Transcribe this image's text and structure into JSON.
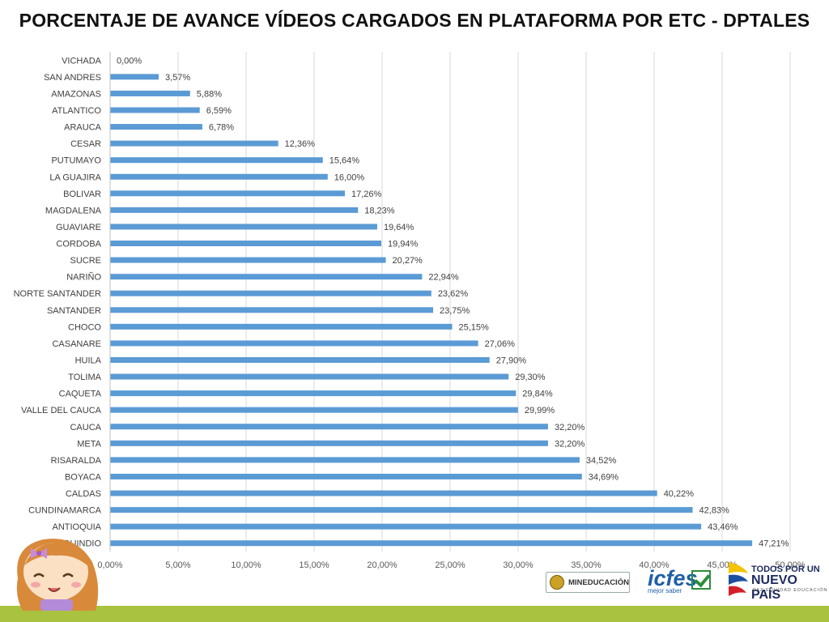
{
  "title": "PORCENTAJE DE AVANCE VÍDEOS CARGADOS EN PLATAFORMA POR ETC - DPTALES",
  "logos": {
    "mineducacion_text": "MINEDUCACIÓN",
    "icfes_text": "icfes",
    "icfes_sub": "mejor saber",
    "tpun_line1": "TODOS POR UN",
    "tpun_line2": "NUEVO PAÍS",
    "tpun_line3": "PAZ  EQUIDAD  EDUCACIÓN"
  },
  "colors": {
    "bar": "#5b9bd5",
    "grid": "#d9d9d9",
    "bottom_band": "#a9c23f"
  },
  "chart_data": {
    "type": "bar",
    "orientation": "horizontal",
    "title": "PORCENTAJE DE AVANCE VÍDEOS CARGADOS EN PLATAFORMA POR ETC - DPTALES",
    "xlim": [
      0,
      50
    ],
    "grid": true,
    "x_ticks": [
      "0,00%",
      "5,00%",
      "10,00%",
      "15,00%",
      "20,00%",
      "25,00%",
      "30,00%",
      "35,00%",
      "40,00%",
      "45,00%",
      "50,00%"
    ],
    "categories": [
      "VICHADA",
      "SAN ANDRES",
      "AMAZONAS",
      "ATLANTICO",
      "ARAUCA",
      "CESAR",
      "PUTUMAYO",
      "LA GUAJIRA",
      "BOLIVAR",
      "MAGDALENA",
      "GUAVIARE",
      "CORDOBA",
      "SUCRE",
      "NARIÑO",
      "NORTE SANTANDER",
      "SANTANDER",
      "CHOCO",
      "CASANARE",
      "HUILA",
      "TOLIMA",
      "CAQUETA",
      "VALLE DEL CAUCA",
      "CAUCA",
      "META",
      "RISARALDA",
      "BOYACA",
      "CALDAS",
      "CUNDINAMARCA",
      "ANTIOQUIA",
      "QUINDIO"
    ],
    "values": [
      0.0,
      3.57,
      5.88,
      6.59,
      6.78,
      12.36,
      15.64,
      16.0,
      17.26,
      18.23,
      19.64,
      19.94,
      20.27,
      22.94,
      23.62,
      23.75,
      25.15,
      27.06,
      27.9,
      29.3,
      29.84,
      29.99,
      32.2,
      32.2,
      34.52,
      34.69,
      40.22,
      42.83,
      43.46,
      47.21
    ],
    "value_labels": [
      "0,00%",
      "3,57%",
      "5,88%",
      "6,59%",
      "6,78%",
      "12,36%",
      "15,64%",
      "16,00%",
      "17,26%",
      "18,23%",
      "19,64%",
      "19,94%",
      "20,27%",
      "22,94%",
      "23,62%",
      "23,75%",
      "25,15%",
      "27,06%",
      "27,90%",
      "29,30%",
      "29,84%",
      "29,99%",
      "32,20%",
      "32,20%",
      "34,52%",
      "34,69%",
      "40,22%",
      "42,83%",
      "43,46%",
      "47,21%"
    ]
  }
}
